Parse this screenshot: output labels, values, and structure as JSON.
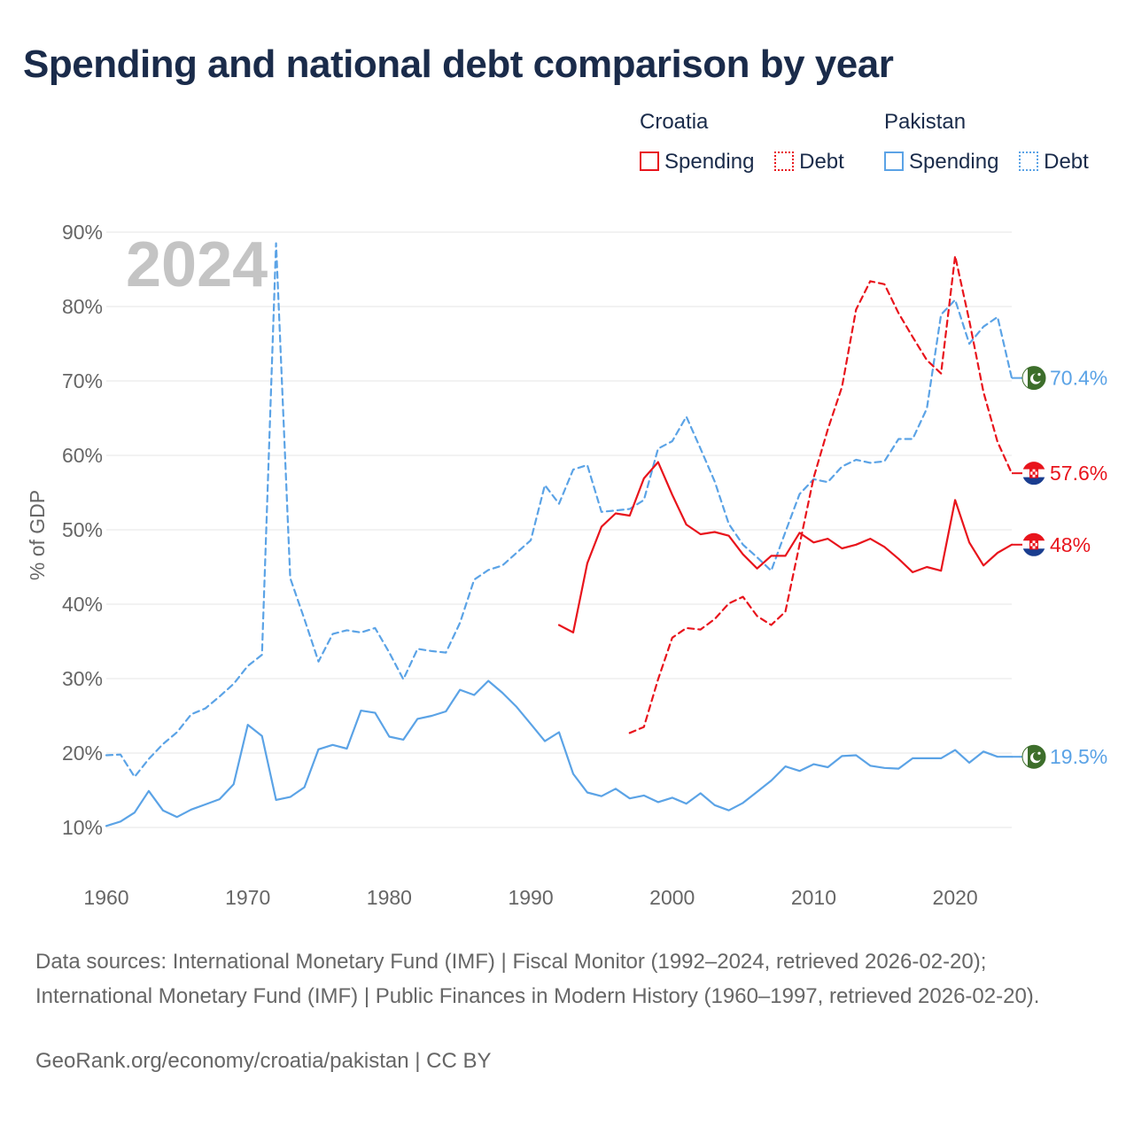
{
  "title": "Spending and national debt comparison by year",
  "legend": {
    "countries": [
      {
        "name": "Croatia",
        "spending_label": "Spending",
        "debt_label": "Debt",
        "color": "#e8141c"
      },
      {
        "name": "Pakistan",
        "spending_label": "Spending",
        "debt_label": "Debt",
        "color": "#5ba3e6"
      }
    ]
  },
  "sources_text": "Data sources: International Monetary Fund (IMF) | Fiscal Monitor (1992–2024, retrieved 2026-02-20); International Monetary Fund (IMF) | Public Finances in Modern History (1960–1997, retrieved 2026-02-20).",
  "credit": "GeoRank.org/economy/croatia/pakistan | CC BY",
  "chart_data": {
    "type": "line",
    "title": "Spending and national debt comparison by year",
    "ylabel": "% of GDP",
    "xlabel": "",
    "year_label": "2024",
    "xlim": [
      1960,
      2024
    ],
    "ylim": [
      10,
      90
    ],
    "x_ticks": [
      1960,
      1970,
      1980,
      1990,
      2000,
      2010,
      2020
    ],
    "y_ticks": [
      10,
      20,
      30,
      40,
      50,
      60,
      70,
      80,
      90
    ],
    "y_tick_labels": [
      "10%",
      "20%",
      "30%",
      "40%",
      "50%",
      "60%",
      "70%",
      "80%",
      "90%"
    ],
    "grid": true,
    "legend_position": "top-right",
    "series": [
      {
        "name": "Pakistan Debt",
        "country": "Pakistan",
        "metric": "Debt",
        "color": "#5ba3e6",
        "dashed": true,
        "start": 1960,
        "values": [
          19.7,
          19.8,
          16.8,
          19.2,
          21.2,
          22.8,
          25.2,
          26.0,
          27.6,
          29.3,
          31.7,
          33.2,
          88.5,
          43.5,
          38.0,
          32.3,
          36.0,
          36.5,
          36.2,
          36.8,
          33.5,
          29.9,
          34.0,
          33.7,
          33.5,
          37.5,
          43.3,
          44.6,
          45.2,
          46.9,
          48.6,
          56.0,
          53.5,
          58.1,
          58.7,
          52.4,
          52.6,
          52.8,
          54.0,
          60.9,
          61.9,
          65.2,
          60.9,
          56.5,
          50.8,
          48.0,
          46.3,
          44.5,
          49.7,
          54.8,
          56.8,
          56.4,
          58.5,
          59.4,
          59.0,
          59.2,
          62.2,
          62.2,
          66.3,
          78.9,
          80.9,
          75.0,
          77.3,
          78.6,
          70.4
        ],
        "end_label": "70.4%"
      },
      {
        "name": "Pakistan Spending",
        "country": "Pakistan",
        "metric": "Spending",
        "color": "#5ba3e6",
        "dashed": false,
        "start": 1960,
        "values": [
          10.2,
          10.8,
          12.0,
          14.9,
          12.3,
          11.4,
          12.4,
          13.1,
          13.8,
          15.8,
          23.8,
          22.3,
          13.7,
          14.1,
          15.4,
          20.5,
          21.1,
          20.6,
          25.7,
          25.4,
          22.2,
          21.8,
          24.6,
          25.0,
          25.6,
          28.5,
          27.8,
          29.7,
          28.1,
          26.2,
          23.9,
          21.6,
          22.8,
          17.2,
          14.7,
          14.2,
          15.2,
          13.9,
          14.3,
          13.4,
          14.0,
          13.2,
          14.6,
          13.0,
          12.3,
          13.3,
          14.8,
          16.3,
          18.2,
          17.6,
          18.5,
          18.1,
          19.6,
          19.7,
          18.3,
          18.0,
          17.9,
          19.3,
          19.3,
          19.3,
          20.4,
          18.7,
          20.2,
          19.5,
          19.5
        ],
        "end_label": "19.5%"
      },
      {
        "name": "Croatia Debt",
        "country": "Croatia",
        "metric": "Debt",
        "color": "#e8141c",
        "dashed": true,
        "start": 1997,
        "values": [
          22.7,
          23.5,
          29.9,
          35.5,
          36.8,
          36.6,
          38.0,
          40.1,
          41.0,
          38.4,
          37.2,
          39.0,
          48.0,
          57.0,
          63.5,
          69.2,
          79.6,
          83.4,
          83.0,
          79.1,
          75.9,
          72.8,
          71.0,
          86.8,
          78.1,
          68.5,
          61.8,
          57.6
        ],
        "end_label": "57.6%"
      },
      {
        "name": "Croatia Spending",
        "country": "Croatia",
        "metric": "Spending",
        "color": "#e8141c",
        "dashed": false,
        "start": 1992,
        "values": [
          37.2,
          36.2,
          45.5,
          50.4,
          52.2,
          51.9,
          56.9,
          59.1,
          54.7,
          50.7,
          49.4,
          49.7,
          49.2,
          46.7,
          44.8,
          46.5,
          46.5,
          49.6,
          48.3,
          48.8,
          47.5,
          48.0,
          48.8,
          47.7,
          46.1,
          44.3,
          45.0,
          44.5,
          54.0,
          48.3,
          45.2,
          46.9,
          48.0
        ],
        "end_label": "48%"
      }
    ]
  }
}
